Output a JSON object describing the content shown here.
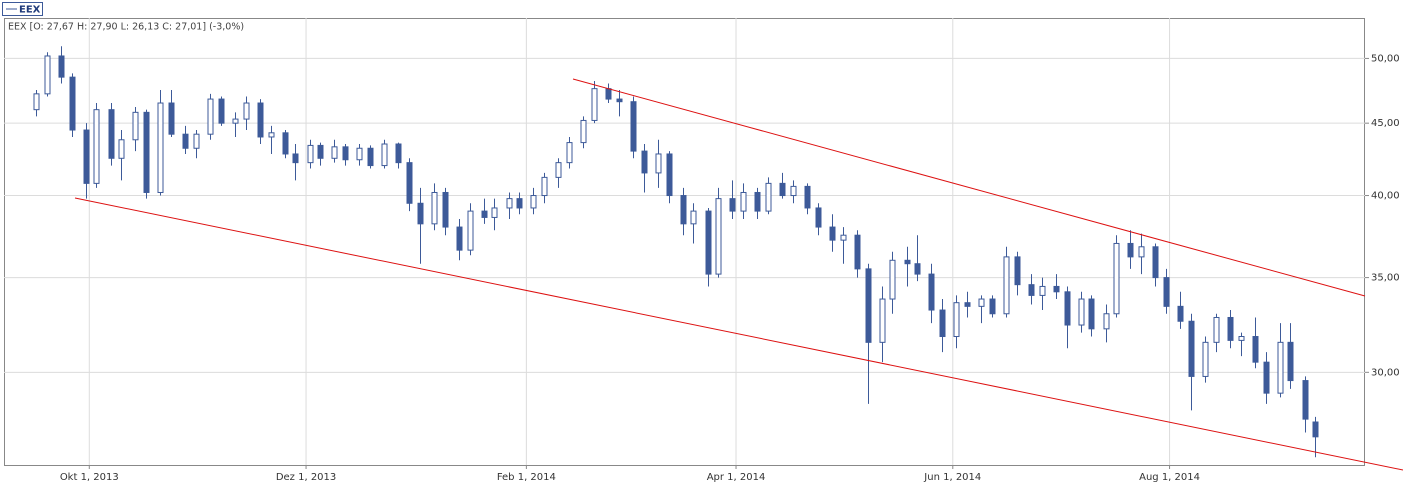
{
  "chart_data": {
    "type": "candlestick",
    "series_name": "EEX",
    "info": "EEX [O: 27,67  H: 27,90  L: 26,13  C: 27,01] (-3,0%)",
    "up_color": "#ffffff",
    "down_color": "#3d5a99",
    "log_scale": true,
    "grid": true,
    "xlim": [
      "2013-09-07",
      "2014-09-25"
    ],
    "xticks": [
      {
        "value": "2013-10-01",
        "label": "Okt 1, 2013"
      },
      {
        "value": "2013-12-01",
        "label": "Dez 1, 2013"
      },
      {
        "value": "2014-02-01",
        "label": "Feb 1, 2014"
      },
      {
        "value": "2014-04-01",
        "label": "Apr 1, 2014"
      },
      {
        "value": "2014-06-01",
        "label": "Jun 1, 2014"
      },
      {
        "value": "2014-08-01",
        "label": "Aug 1, 2014"
      }
    ],
    "ylim": [
      25.8,
      53.4
    ],
    "yticks": [
      {
        "value": 30,
        "label": "30,00"
      },
      {
        "value": 35,
        "label": "35,00"
      },
      {
        "value": 40,
        "label": "40,00"
      },
      {
        "value": 45,
        "label": "45,00"
      },
      {
        "value": 50,
        "label": "50,00"
      }
    ],
    "x": [
      "2013-09-16",
      "2013-09-19",
      "2013-09-23",
      "2013-09-26",
      "2013-09-30",
      "2013-10-03",
      "2013-10-07",
      "2013-10-10",
      "2013-10-14",
      "2013-10-17",
      "2013-10-21",
      "2013-10-24",
      "2013-10-28",
      "2013-10-31",
      "2013-11-04",
      "2013-11-07",
      "2013-11-11",
      "2013-11-14",
      "2013-11-18",
      "2013-11-21",
      "2013-11-25",
      "2013-11-28",
      "2013-12-02",
      "2013-12-05",
      "2013-12-09",
      "2013-12-12",
      "2013-12-16",
      "2013-12-19",
      "2013-12-23",
      "2013-12-27",
      "2013-12-30",
      "2014-01-02",
      "2014-01-06",
      "2014-01-09",
      "2014-01-13",
      "2014-01-16",
      "2014-01-20",
      "2014-01-23",
      "2014-01-27",
      "2014-01-30",
      "2014-02-03",
      "2014-02-06",
      "2014-02-10",
      "2014-02-13",
      "2014-02-17",
      "2014-02-20",
      "2014-02-24",
      "2014-02-27",
      "2014-03-03",
      "2014-03-06",
      "2014-03-10",
      "2014-03-13",
      "2014-03-17",
      "2014-03-20",
      "2014-03-24",
      "2014-03-27",
      "2014-03-31",
      "2014-04-03",
      "2014-04-07",
      "2014-04-10",
      "2014-04-14",
      "2014-04-17",
      "2014-04-21",
      "2014-04-24",
      "2014-04-28",
      "2014-05-01",
      "2014-05-05",
      "2014-05-08",
      "2014-05-12",
      "2014-05-15",
      "2014-05-19",
      "2014-05-22",
      "2014-05-26",
      "2014-05-29",
      "2014-06-02",
      "2014-06-05",
      "2014-06-09",
      "2014-06-12",
      "2014-06-16",
      "2014-06-19",
      "2014-06-23",
      "2014-06-26",
      "2014-06-30",
      "2014-07-03",
      "2014-07-07",
      "2014-07-10",
      "2014-07-14",
      "2014-07-17",
      "2014-07-21",
      "2014-07-24",
      "2014-07-28",
      "2014-07-31",
      "2014-08-04",
      "2014-08-07",
      "2014-08-11",
      "2014-08-14",
      "2014-08-18",
      "2014-08-21",
      "2014-08-25",
      "2014-08-28",
      "2014-09-01",
      "2014-09-04",
      "2014-09-08",
      "2014-09-11"
    ],
    "open": [
      46.0,
      47.2,
      50.2,
      48.5,
      44.5,
      40.8,
      46.0,
      42.5,
      43.8,
      45.8,
      40.2,
      46.5,
      44.2,
      43.2,
      44.2,
      46.8,
      45.0,
      45.3,
      46.5,
      44.0,
      44.3,
      42.8,
      42.2,
      43.4,
      42.5,
      43.3,
      42.4,
      43.2,
      42.0,
      43.5,
      42.2,
      39.5,
      38.2,
      40.2,
      38.0,
      36.6,
      39.0,
      38.6,
      39.2,
      39.8,
      39.2,
      40.0,
      41.2,
      42.2,
      43.6,
      45.2,
      47.6,
      46.8,
      46.6,
      43.0,
      41.5,
      42.8,
      40.0,
      38.2,
      39.0,
      35.2,
      39.8,
      39.0,
      40.2,
      39.0,
      40.8,
      40.0,
      40.6,
      39.2,
      38.0,
      37.2,
      37.5,
      35.5,
      31.5,
      33.8,
      36.0,
      35.8,
      35.2,
      33.2,
      31.8,
      33.6,
      33.4,
      33.8,
      33.0,
      36.2,
      34.6,
      34.0,
      34.5,
      34.2,
      32.4,
      33.8,
      32.2,
      33.0,
      37.0,
      36.2,
      36.8,
      35.0,
      33.4,
      32.6,
      29.8,
      31.5,
      32.8,
      31.6,
      31.8,
      30.5,
      29.0,
      31.5,
      29.6,
      27.67
    ],
    "high": [
      47.5,
      50.5,
      51.0,
      48.8,
      45.0,
      46.5,
      46.5,
      44.5,
      46.2,
      46.0,
      47.5,
      47.5,
      44.8,
      44.5,
      47.2,
      47.0,
      45.8,
      47.0,
      46.8,
      44.8,
      44.5,
      43.5,
      43.8,
      43.6,
      43.8,
      43.5,
      43.5,
      43.4,
      43.8,
      43.6,
      42.5,
      40.5,
      40.8,
      40.5,
      38.5,
      39.5,
      39.8,
      39.8,
      40.2,
      40.2,
      40.5,
      41.5,
      42.5,
      44.0,
      45.5,
      48.2,
      48.0,
      47.5,
      47.0,
      43.5,
      43.8,
      43.0,
      40.5,
      39.5,
      39.2,
      40.5,
      41.0,
      40.8,
      40.5,
      41.2,
      41.5,
      41.0,
      40.8,
      39.5,
      38.8,
      38.0,
      37.8,
      35.8,
      34.5,
      36.5,
      36.8,
      37.5,
      35.8,
      33.8,
      34.0,
      34.2,
      34.0,
      34.0,
      36.8,
      36.5,
      35.2,
      35.0,
      35.2,
      34.5,
      34.2,
      34.0,
      33.5,
      37.5,
      37.8,
      37.6,
      37.0,
      35.5,
      34.2,
      33.0,
      31.8,
      33.0,
      33.2,
      32.0,
      32.8,
      31.0,
      32.5,
      32.5,
      29.8,
      27.9
    ],
    "low": [
      45.5,
      47.0,
      48.0,
      44.0,
      39.8,
      40.5,
      42.0,
      41.0,
      43.0,
      39.8,
      40.0,
      44.0,
      42.8,
      42.5,
      43.8,
      44.8,
      44.0,
      44.5,
      43.5,
      42.8,
      42.5,
      41.0,
      41.8,
      42.0,
      42.2,
      42.0,
      42.0,
      41.8,
      41.8,
      41.8,
      39.0,
      35.8,
      37.8,
      37.5,
      36.0,
      36.3,
      38.2,
      37.8,
      38.5,
      38.8,
      38.8,
      39.5,
      40.5,
      41.8,
      43.2,
      45.0,
      46.5,
      45.5,
      42.5,
      40.2,
      40.5,
      39.5,
      37.5,
      37.0,
      34.5,
      35.0,
      38.5,
      38.5,
      38.5,
      38.8,
      39.8,
      39.5,
      38.8,
      37.5,
      36.5,
      35.8,
      35.0,
      28.5,
      30.5,
      33.0,
      34.5,
      34.8,
      32.5,
      31.0,
      31.2,
      32.8,
      32.5,
      32.8,
      32.8,
      34.0,
      33.5,
      33.2,
      33.8,
      31.2,
      32.0,
      31.8,
      31.5,
      32.8,
      35.5,
      35.2,
      34.5,
      33.0,
      32.2,
      28.2,
      29.5,
      31.0,
      31.2,
      30.8,
      30.2,
      28.5,
      28.8,
      29.2,
      27.2,
      26.13
    ],
    "close": [
      47.2,
      50.2,
      48.5,
      44.5,
      40.8,
      46.0,
      42.5,
      43.8,
      45.8,
      40.2,
      46.5,
      44.2,
      43.2,
      44.2,
      46.8,
      45.0,
      45.3,
      46.5,
      44.0,
      44.3,
      42.8,
      42.2,
      43.4,
      42.5,
      43.3,
      42.4,
      43.2,
      42.0,
      43.5,
      42.2,
      39.5,
      38.2,
      40.2,
      38.0,
      36.6,
      39.0,
      38.6,
      39.2,
      39.8,
      39.2,
      40.0,
      41.2,
      42.2,
      43.6,
      45.2,
      47.6,
      46.8,
      46.6,
      43.0,
      41.5,
      42.8,
      40.0,
      38.2,
      39.0,
      35.2,
      39.8,
      39.0,
      40.2,
      39.0,
      40.8,
      40.0,
      40.6,
      39.2,
      38.0,
      37.2,
      37.5,
      35.5,
      31.5,
      33.8,
      36.0,
      35.8,
      35.2,
      33.2,
      31.8,
      33.6,
      33.4,
      33.8,
      33.0,
      36.2,
      34.6,
      34.0,
      34.5,
      34.2,
      32.4,
      33.8,
      32.2,
      33.0,
      37.0,
      36.2,
      36.8,
      35.0,
      33.4,
      32.6,
      29.8,
      31.5,
      32.8,
      31.6,
      31.8,
      30.5,
      29.0,
      31.5,
      29.6,
      27.8,
      27.01
    ]
  }
}
